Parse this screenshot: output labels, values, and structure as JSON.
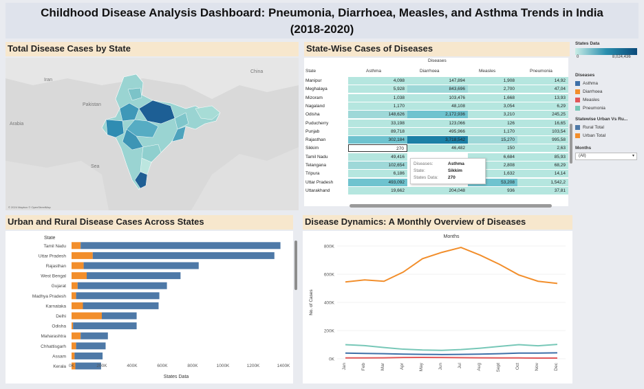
{
  "page": {
    "title_line1": "Childhood Disease Analysis Dashboard: Pneumonia, Diarrhoea, Measles, and Asthma Trends in India",
    "title_line2": "(2018-2020)"
  },
  "map_panel": {
    "title": "Total Disease Cases by State",
    "labels": {
      "iran": "Iran",
      "pakistan": "Pakistan",
      "arabia": "Arabia",
      "sea": "Sea",
      "china": "China"
    },
    "attribution": "© 2024 Mapbox © OpenStreetMap"
  },
  "table_panel": {
    "title": "State-Wise Cases of Diseases",
    "group_header": "Diseases",
    "state_header": "State",
    "columns": [
      "Asthma",
      "Diarrhoea",
      "Measles",
      "Pneumonia"
    ],
    "rows": [
      {
        "state": "Manipur",
        "values": [
          "4,098",
          "147,894",
          "1,908",
          "14,92"
        ]
      },
      {
        "state": "Meghalaya",
        "values": [
          "5,928",
          "843,696",
          "2,700",
          "47,04"
        ]
      },
      {
        "state": "Mizoram",
        "values": [
          "1,038",
          "103,476",
          "1,668",
          "13,93"
        ]
      },
      {
        "state": "Nagaland",
        "values": [
          "1,170",
          "48,108",
          "3,054",
          "6,29"
        ]
      },
      {
        "state": "Odisha",
        "values": [
          "148,626",
          "2,172,936",
          "3,210",
          "245,25"
        ]
      },
      {
        "state": "Puducherry",
        "values": [
          "33,198",
          "123,066",
          "126",
          "16,65"
        ]
      },
      {
        "state": "Punjab",
        "values": [
          "89,718",
          "495,966",
          "1,170",
          "103,54"
        ]
      },
      {
        "state": "Rajasthan",
        "values": [
          "302,184",
          "3,718,542",
          "15,270",
          "995,58"
        ]
      },
      {
        "state": "Sikkim",
        "values": [
          "270",
          "46,482",
          "150",
          "2,63"
        ]
      },
      {
        "state": "Tamil Nadu",
        "values": [
          "49,416",
          "",
          "6,684",
          "85,93"
        ]
      },
      {
        "state": "Telangana",
        "values": [
          "102,654",
          "",
          "2,808",
          "68,29"
        ]
      },
      {
        "state": "Tripura",
        "values": [
          "6,186",
          "",
          "1,632",
          "14,14"
        ]
      },
      {
        "state": "Uttar Pradesh",
        "values": [
          "493,092",
          "",
          "53,208",
          "1,542,2"
        ]
      },
      {
        "state": "Uttarakhand",
        "values": [
          "19,662",
          "204,048",
          "936",
          "37,81"
        ]
      }
    ],
    "tooltip": {
      "k1": "Diseases:",
      "v1": "Asthma",
      "k2": "State:",
      "v2": "Sikkim",
      "k3": "States Data:",
      "v3": "270"
    }
  },
  "legend": {
    "states_data_title": "States Data",
    "states_data_min": "0",
    "states_data_max": "8,024,436",
    "diseases_title": "Diseases",
    "diseases": [
      {
        "label": "Asthma",
        "color": "#3d6fa8"
      },
      {
        "label": "Diarrhoea",
        "color": "#f28e2b"
      },
      {
        "label": "Measles",
        "color": "#e15759"
      },
      {
        "label": "Pneumonia",
        "color": "#76c7b7"
      }
    ],
    "urban_rural_title": "Statewise Urban Vs Ru...",
    "urban_rural": [
      {
        "label": "Rural Total",
        "color": "#4e79a7"
      },
      {
        "label": "Urban Total",
        "color": "#f28e2b"
      }
    ],
    "months_title": "Months",
    "months_value": "(All)"
  },
  "bar_panel": {
    "title": "Urban and Rural Disease Cases Across States",
    "state_header": "State",
    "x_title": "States Data"
  },
  "line_panel": {
    "title": "Disease Dynamics: A Monthly Overview of Diseases",
    "top_label": "Months",
    "y_title": "No. of Cases"
  },
  "chart_data": [
    {
      "type": "bar",
      "stacked": true,
      "orientation": "horizontal",
      "title": "Urban and Rural Disease Cases Across States",
      "xlabel": "States Data",
      "ylabel": "State",
      "categories": [
        "Tamil Nadu",
        "Uttar Pradesh",
        "Rajasthan",
        "West Bengal",
        "Gujarat",
        "Madhya Pradesh",
        "Karnataka",
        "Delhi",
        "Odisha",
        "Maharashtra",
        "Chhattisgarh",
        "Assam",
        "Kerala"
      ],
      "series": [
        {
          "name": "Urban Total",
          "color": "#f28e2b",
          "values": [
            60000,
            140000,
            80000,
            100000,
            40000,
            30000,
            75000,
            200000,
            10000,
            60000,
            30000,
            20000,
            25000
          ]
        },
        {
          "name": "Rural Total",
          "color": "#4e79a7",
          "values": [
            1320000,
            1200000,
            760000,
            620000,
            590000,
            550000,
            500000,
            230000,
            420000,
            180000,
            195000,
            185000,
            170000
          ]
        }
      ],
      "xlim": [
        0,
        1400000
      ],
      "xticks": [
        "0K",
        "200K",
        "400K",
        "600K",
        "800K",
        "1000K",
        "1200K",
        "1400K"
      ]
    },
    {
      "type": "line",
      "title": "Disease Dynamics: A Monthly Overview of Diseases",
      "xlabel": "Months",
      "ylabel": "No. of Cases",
      "x": [
        "Jan",
        "Feb",
        "Mar",
        "Apr",
        "May",
        "Jun",
        "Jul",
        "Aug",
        "Sept",
        "Oct",
        "Nov",
        "Dec"
      ],
      "ylim": [
        0,
        800000
      ],
      "yticks": [
        "0K",
        "200K",
        "400K",
        "600K",
        "800K"
      ],
      "series": [
        {
          "name": "Diarrhoea",
          "color": "#f28e2b",
          "values": [
            545000,
            560000,
            550000,
            615000,
            710000,
            755000,
            790000,
            735000,
            670000,
            595000,
            550000,
            535000
          ]
        },
        {
          "name": "Pneumonia",
          "color": "#76c7b7",
          "values": [
            100000,
            93000,
            80000,
            68000,
            62000,
            60000,
            65000,
            75000,
            88000,
            100000,
            92000,
            102000
          ]
        },
        {
          "name": "Asthma",
          "color": "#3d6fa8",
          "values": [
            40000,
            38000,
            36000,
            33000,
            31000,
            30000,
            31000,
            33000,
            36000,
            40000,
            40000,
            42000
          ]
        },
        {
          "name": "Measles",
          "color": "#e15759",
          "values": [
            6000,
            6000,
            7000,
            9000,
            10000,
            9000,
            8000,
            7000,
            6000,
            6000,
            5000,
            5000
          ]
        }
      ]
    }
  ]
}
